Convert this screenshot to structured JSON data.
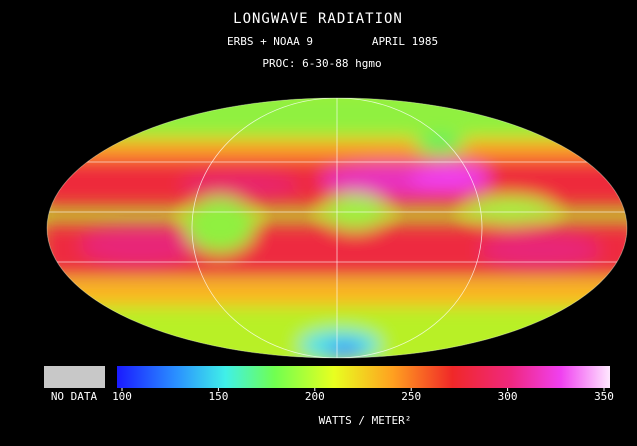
{
  "header": {
    "title": "LONGWAVE RADIATION",
    "instruments": "ERBS + NOAA 9",
    "date": "APRIL 1985",
    "processing": "PROC: 6-30-88 hgmo"
  },
  "legend": {
    "no_data_label": "NO DATA",
    "range": [
      100,
      350
    ],
    "ticks": [
      100,
      150,
      200,
      250,
      300,
      350
    ],
    "unit": "WATTS / METER²"
  }
}
